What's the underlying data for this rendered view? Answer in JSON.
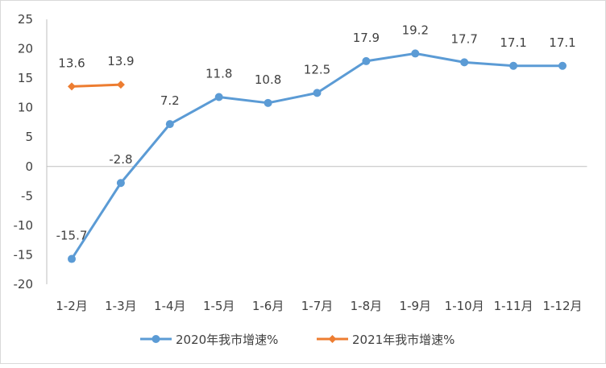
{
  "chart_data": {
    "type": "line",
    "categories": [
      "1-2月",
      "1-3月",
      "1-4月",
      "1-5月",
      "1-6月",
      "1-7月",
      "1-8月",
      "1-9月",
      "1-10月",
      "1-11月",
      "1-12月"
    ],
    "series": [
      {
        "name": "2020年我市增速%",
        "color": "#5b9bd5",
        "marker": "circle",
        "values": [
          -15.7,
          -2.8,
          7.2,
          11.8,
          10.8,
          12.5,
          17.9,
          19.2,
          17.7,
          17.1,
          17.1
        ]
      },
      {
        "name": "2021年我市增速%",
        "color": "#ed7d31",
        "marker": "diamond",
        "values": [
          13.6,
          13.9,
          null,
          null,
          null,
          null,
          null,
          null,
          null,
          null,
          null
        ]
      }
    ],
    "ylim": [
      -20,
      25
    ],
    "yticks": [
      25,
      20,
      15,
      10,
      5,
      0,
      -5,
      -10,
      -15,
      -20
    ],
    "grid": false,
    "data_labels": true,
    "legend_position": "bottom"
  }
}
